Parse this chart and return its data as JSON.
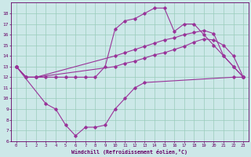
{
  "background_color": "#cce8e8",
  "grid_color": "#99ccbb",
  "line_color": "#993399",
  "marker_color": "#993399",
  "xlabel": "Windchill (Refroidissement éolien,°C)",
  "xlabel_color": "#660066",
  "tick_color": "#660066",
  "ylim": [
    6,
    19
  ],
  "xlim": [
    -0.5,
    23.5
  ],
  "yticks": [
    6,
    7,
    8,
    9,
    10,
    11,
    12,
    13,
    14,
    15,
    16,
    17,
    18
  ],
  "xticks": [
    0,
    1,
    2,
    3,
    4,
    5,
    6,
    7,
    8,
    9,
    10,
    11,
    12,
    13,
    14,
    15,
    16,
    17,
    18,
    19,
    20,
    21,
    22,
    23
  ],
  "curve1_x": [
    0,
    1,
    2,
    3,
    4,
    5,
    6,
    7,
    8,
    9,
    10,
    11,
    12,
    13,
    14,
    15,
    16,
    17,
    18,
    19,
    20,
    21,
    22,
    23
  ],
  "curve1_y": [
    13,
    12,
    12,
    12,
    12,
    12,
    12,
    12,
    12,
    13,
    16.5,
    17.3,
    17.5,
    18,
    18.5,
    18.5,
    16.3,
    17,
    17,
    16,
    15,
    14,
    13,
    12
  ],
  "curve2_x": [
    0,
    1,
    2,
    10,
    11,
    12,
    13,
    14,
    15,
    16,
    17,
    18,
    19,
    20,
    21,
    22,
    23
  ],
  "curve2_y": [
    13,
    12,
    12,
    14,
    14.3,
    14.6,
    14.9,
    15.2,
    15.5,
    15.7,
    16,
    16.2,
    16.4,
    16.1,
    14,
    13,
    12
  ],
  "curve3_x": [
    0,
    1,
    2,
    10,
    11,
    12,
    13,
    14,
    15,
    16,
    17,
    18,
    19,
    20,
    21,
    22,
    23
  ],
  "curve3_y": [
    13,
    12,
    12,
    13,
    13.3,
    13.5,
    13.8,
    14.1,
    14.3,
    14.6,
    14.9,
    15.3,
    15.6,
    15.5,
    15,
    14,
    12
  ],
  "curve4_x": [
    0,
    3,
    4,
    5,
    6,
    7,
    8,
    9,
    10,
    11,
    12,
    13,
    22,
    23
  ],
  "curve4_y": [
    13,
    9.5,
    9,
    7.5,
    6.5,
    7.3,
    7.3,
    7.5,
    9,
    10,
    11,
    11.5,
    12,
    12
  ]
}
